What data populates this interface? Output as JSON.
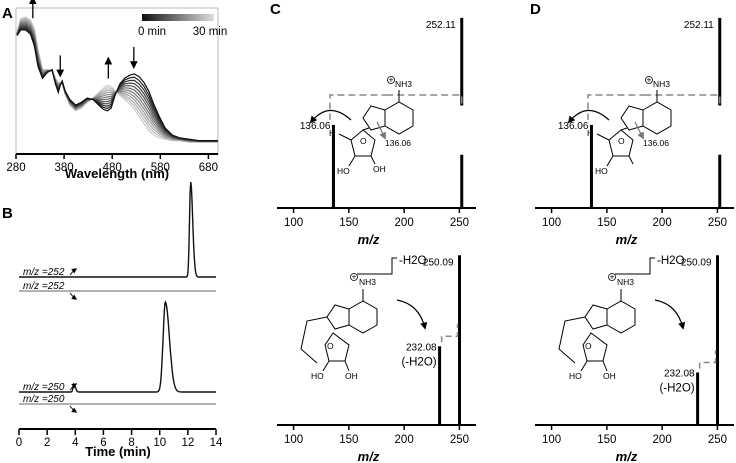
{
  "chart_data": [
    {
      "id": "A",
      "panel_label": "A",
      "type": "line",
      "xlabel": "Wavelength (nm)",
      "xlim": [
        280,
        700
      ],
      "ylim": [
        0,
        1
      ],
      "x_ticks": [
        "280",
        "380",
        "480",
        "580",
        "680"
      ],
      "legend": {
        "start": "0 min",
        "end": "30 min",
        "placement": "top-right"
      },
      "colors": {
        "start": "#111111",
        "end": "#cccccc"
      },
      "series_count": 12,
      "annotations": {
        "increase_at_nm": [
          315,
          472
        ],
        "decrease_at_nm": [
          372,
          525
        ]
      },
      "x": [
        282,
        290,
        300,
        310,
        318,
        326,
        335,
        345,
        355,
        362,
        368,
        372,
        376,
        382,
        392,
        404,
        416,
        428,
        440,
        452,
        462,
        470,
        478,
        486,
        496,
        506,
        516,
        526,
        536,
        546,
        556,
        566,
        578,
        590,
        605,
        620,
        640,
        660,
        680,
        700
      ],
      "start_spectrum": [
        0.82,
        0.86,
        0.86,
        0.83,
        0.75,
        0.6,
        0.52,
        0.56,
        0.58,
        0.48,
        0.42,
        0.47,
        0.5,
        0.43,
        0.37,
        0.33,
        0.35,
        0.38,
        0.37,
        0.33,
        0.3,
        0.29,
        0.31,
        0.4,
        0.48,
        0.52,
        0.54,
        0.55,
        0.53,
        0.49,
        0.43,
        0.34,
        0.25,
        0.17,
        0.12,
        0.1,
        0.09,
        0.08,
        0.08,
        0.08
      ],
      "end_spectrum": [
        0.84,
        0.94,
        0.95,
        0.93,
        0.87,
        0.72,
        0.58,
        0.58,
        0.57,
        0.52,
        0.49,
        0.49,
        0.48,
        0.41,
        0.33,
        0.29,
        0.31,
        0.35,
        0.38,
        0.42,
        0.45,
        0.47,
        0.46,
        0.43,
        0.4,
        0.37,
        0.34,
        0.3,
        0.25,
        0.2,
        0.15,
        0.12,
        0.1,
        0.09,
        0.08,
        0.08,
        0.07,
        0.07,
        0.07,
        0.07
      ]
    },
    {
      "id": "B",
      "panel_label": "B",
      "type": "line",
      "xlabel": "Time (min)",
      "xlim": [
        0,
        14
      ],
      "x_ticks": [
        "0",
        "2",
        "4",
        "6",
        "8",
        "10",
        "12",
        "14"
      ],
      "traces": [
        {
          "label": "m/z =252",
          "color": "#111111",
          "peaks": [
            {
              "rt": 12.2,
              "height": 0.95,
              "width": 0.08
            }
          ]
        },
        {
          "label": "m/z =252",
          "color": "#999999",
          "peaks": []
        },
        {
          "label": "m/z =250",
          "color": "#111111",
          "peaks": [
            {
              "rt": 3.9,
              "height": 0.08,
              "width": 0.06
            },
            {
              "rt": 10.4,
              "height": 0.9,
              "width": 0.16
            }
          ]
        },
        {
          "label": "m/z =250",
          "color": "#999999",
          "peaks": []
        }
      ]
    },
    {
      "id": "C-top",
      "panel_label": "C",
      "type": "bar",
      "xlabel": "m/z",
      "xlim": [
        100,
        250
      ],
      "x_ticks": [
        "100",
        "150",
        "200",
        "250"
      ],
      "bars": [
        {
          "mz": 136.06,
          "intensity": 0.42
        },
        {
          "mz": 252.11,
          "intensity": 0.96
        }
      ],
      "labels": {
        "parent": "252.11",
        "fragment": "136.06",
        "cleavage": "136.06"
      }
    },
    {
      "id": "C-bottom",
      "type": "bar",
      "xlabel": "m/z",
      "xlim": [
        100,
        250
      ],
      "x_ticks": [
        "100",
        "150",
        "200",
        "250"
      ],
      "bars": [
        {
          "mz": 232.08,
          "intensity": 0.45
        },
        {
          "mz": 250.09,
          "intensity": 0.97
        }
      ],
      "labels": {
        "parent": "250.09",
        "fragment": "232.08",
        "fragment_note": "(-H2O)",
        "loss": "-H2O"
      }
    },
    {
      "id": "D-top",
      "panel_label": "D",
      "type": "bar",
      "xlabel": "m/z",
      "xlim": [
        100,
        250
      ],
      "x_ticks": [
        "100",
        "150",
        "200",
        "250"
      ],
      "bars": [
        {
          "mz": 136.06,
          "intensity": 0.42
        },
        {
          "mz": 252.11,
          "intensity": 0.96
        }
      ],
      "labels": {
        "parent": "252.11",
        "fragment": "136.06",
        "cleavage": "136.06"
      }
    },
    {
      "id": "D-bottom",
      "type": "bar",
      "xlabel": "m/z",
      "xlim": [
        100,
        250
      ],
      "x_ticks": [
        "100",
        "150",
        "200",
        "250"
      ],
      "bars": [
        {
          "mz": 232.08,
          "intensity": 0.3
        },
        {
          "mz": 250.09,
          "intensity": 0.97
        }
      ],
      "labels": {
        "parent": "250.09",
        "fragment": "232.08",
        "fragment_note": "(-H2O)",
        "loss": "-H2O"
      }
    }
  ],
  "molecule": {
    "nh3": "NH3",
    "h": "H",
    "ho": "HO",
    "oh": "OH",
    "o": "O",
    "n": "N",
    "plus": "+"
  }
}
